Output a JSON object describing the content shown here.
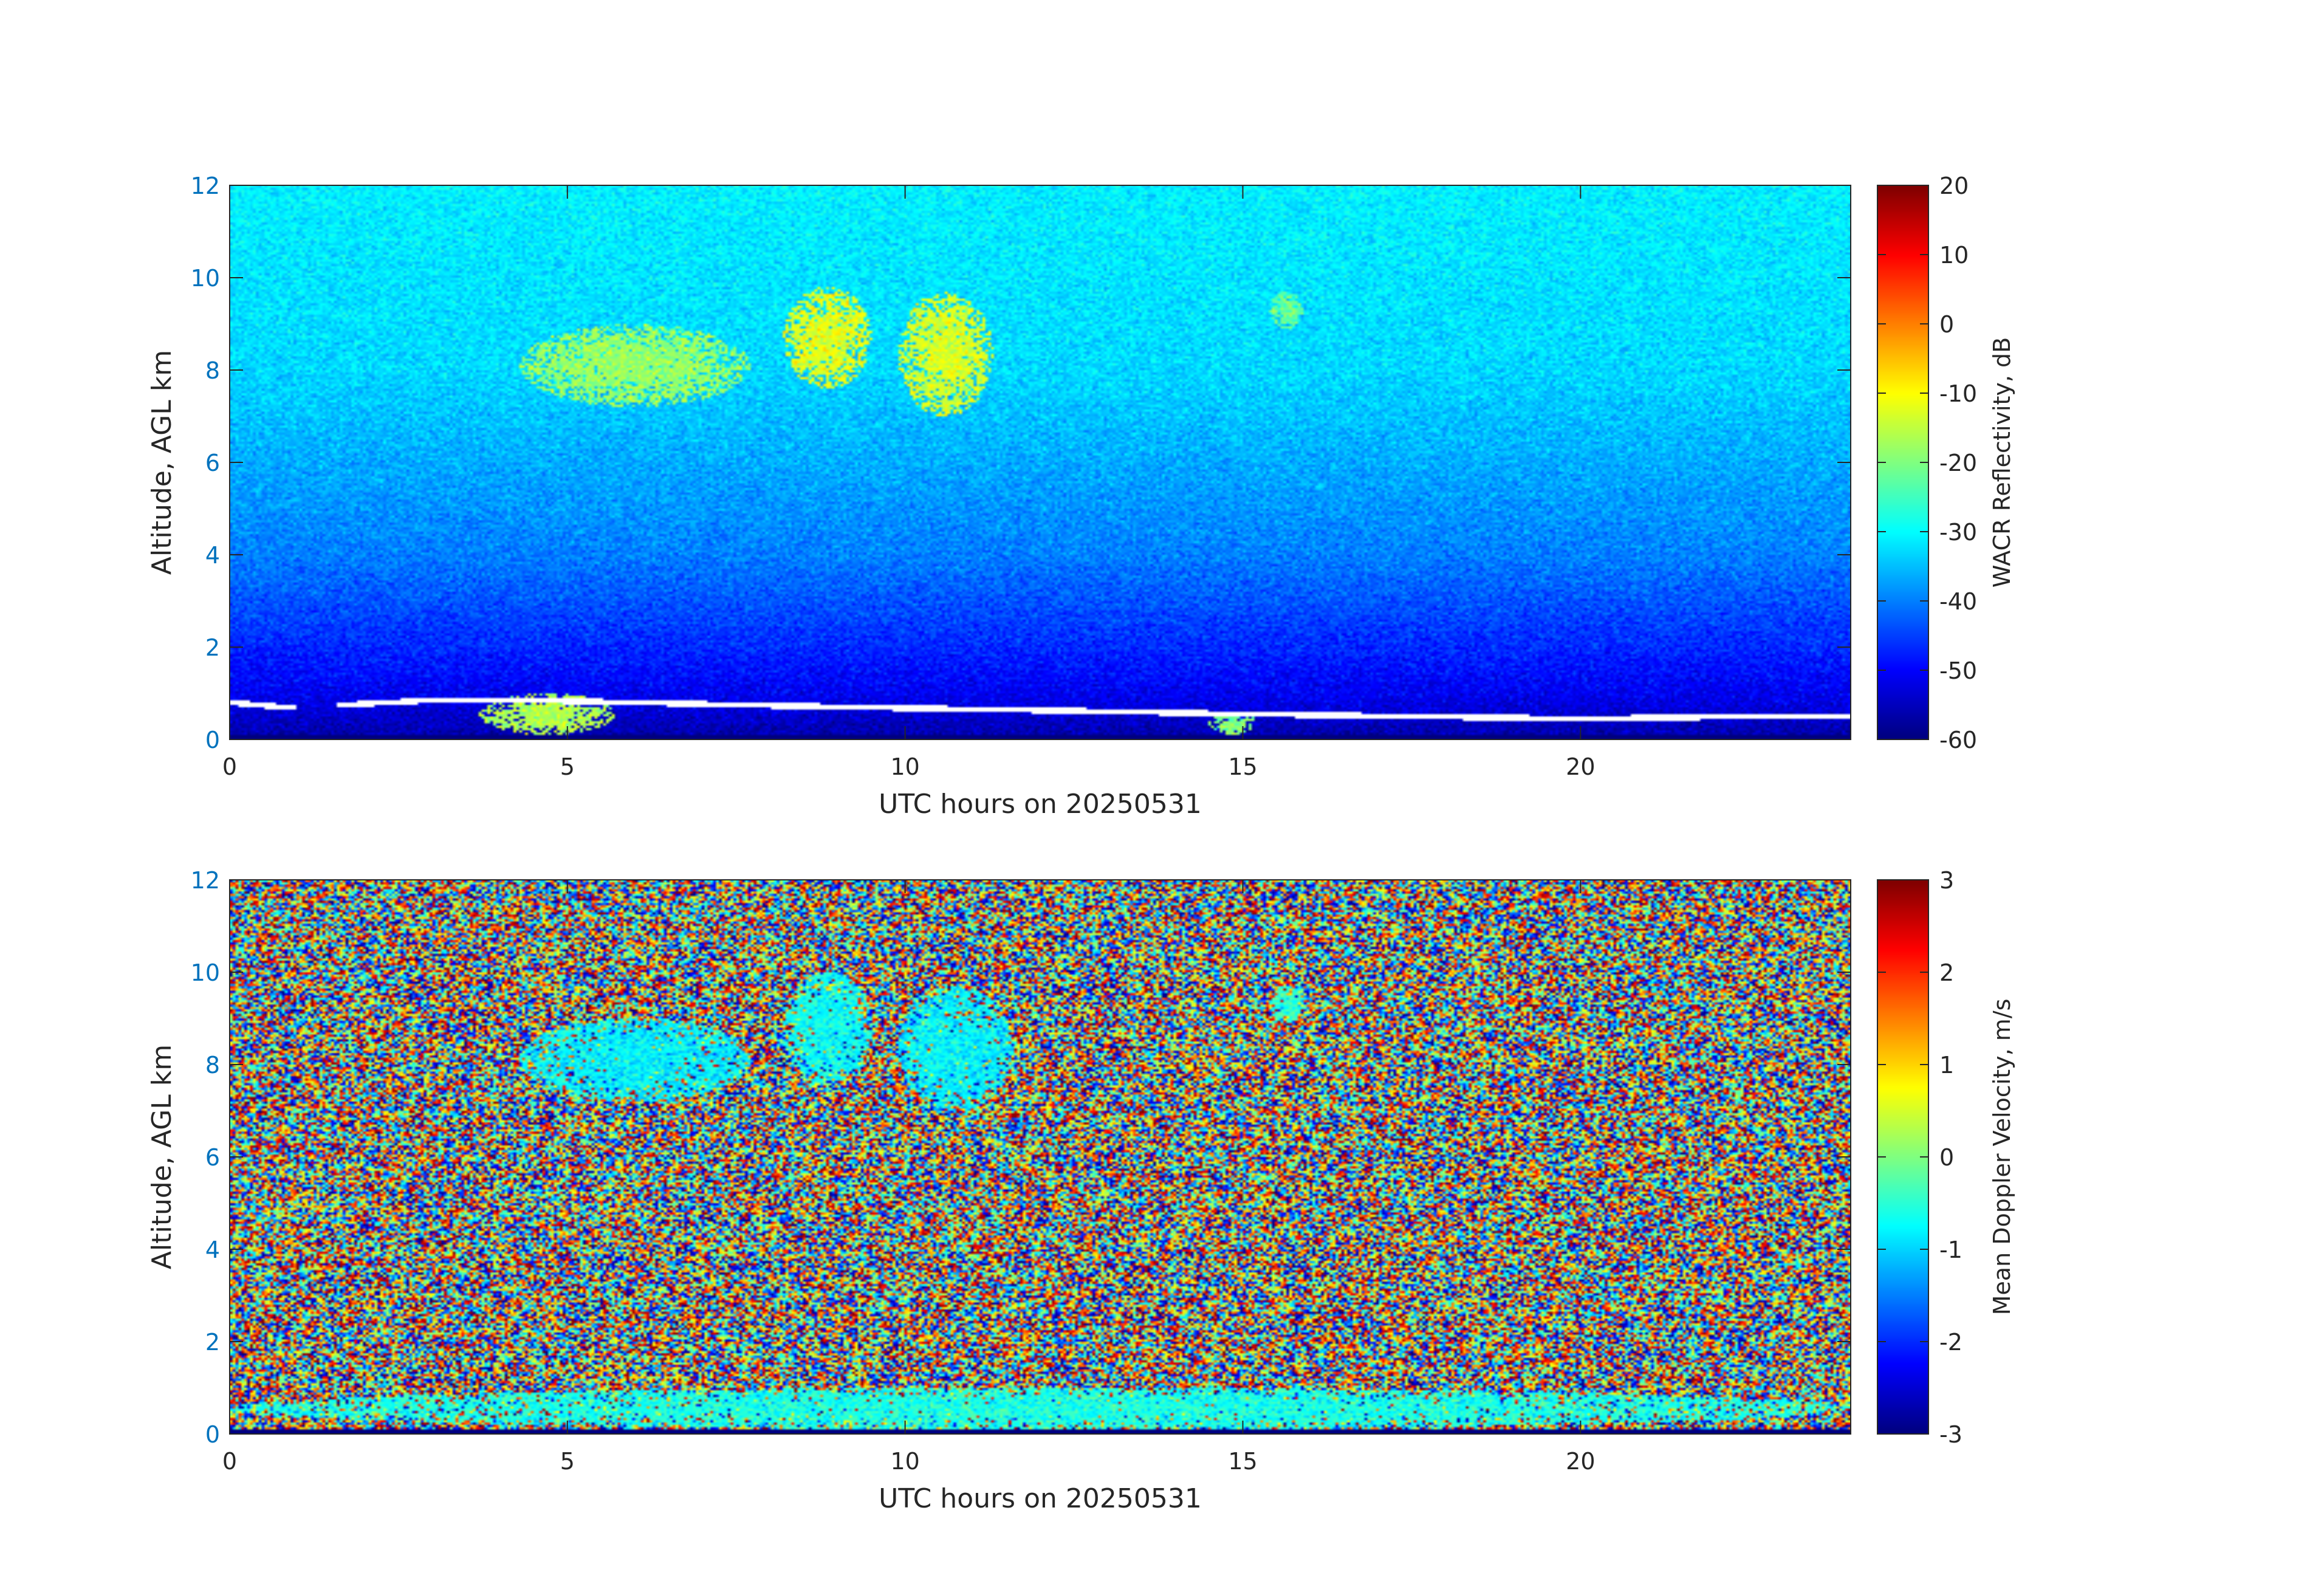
{
  "colors": {
    "axis_blue": "#0072bd",
    "tick_dark": "#262626",
    "colormap": "jet"
  },
  "chart_data": [
    {
      "type": "heatmap",
      "title": "",
      "xlabel": "UTC hours on 20250531",
      "ylabel": "Altitude, AGL km",
      "xlim": [
        0,
        24
      ],
      "ylim": [
        0,
        12
      ],
      "xticks": [
        "0",
        "5",
        "10",
        "15",
        "20"
      ],
      "yticks": [
        "0",
        "2",
        "4",
        "6",
        "8",
        "10",
        "12"
      ],
      "colorbar": {
        "label": "WACR Reflectivity, dB",
        "range": [
          -60,
          20
        ],
        "ticks": [
          "20",
          "10",
          "0",
          "-10",
          "-20",
          "-30",
          "-40",
          "-50",
          "-60"
        ]
      },
      "background_trend": {
        "altitude_km": [
          0,
          1,
          2,
          4,
          8,
          12
        ],
        "value_dB": [
          -57,
          -51,
          -47,
          -40,
          -33,
          -31
        ]
      },
      "features": [
        {
          "name": "cirrus",
          "x_range": [
            8.2,
            9.5
          ],
          "y_range": [
            7.6,
            9.8
          ],
          "value_dB": -12
        },
        {
          "name": "cirrus",
          "x_range": [
            9.9,
            11.3
          ],
          "y_range": [
            7.0,
            9.7
          ],
          "value_dB": -13
        },
        {
          "name": "cirrus fragments",
          "x_range": [
            4.3,
            7.7
          ],
          "y_range": [
            7.2,
            9.0
          ],
          "value_dB": -18
        },
        {
          "name": "cirrus",
          "x_range": [
            15.4,
            15.9
          ],
          "y_range": [
            8.9,
            9.7
          ],
          "value_dB": -22
        },
        {
          "name": "boundary-layer cloud",
          "x_range": [
            3.7,
            5.7
          ],
          "y_range": [
            0.1,
            1.0
          ],
          "value_dB": -16
        },
        {
          "name": "boundary-layer cloud",
          "x_range": [
            14.5,
            15.2
          ],
          "y_range": [
            0.1,
            0.6
          ],
          "value_dB": -20
        }
      ],
      "cloud_base_km": {
        "x": [
          0.0,
          0.8,
          1.7,
          3.0,
          4.5,
          6.0,
          7.5,
          10.0,
          12.5,
          15.0,
          17.5,
          20.0,
          22.5,
          24.0
        ],
        "y": [
          0.8,
          0.7,
          0.75,
          0.85,
          0.85,
          0.8,
          0.75,
          0.68,
          0.62,
          0.55,
          0.5,
          0.45,
          0.5,
          0.5
        ]
      }
    },
    {
      "type": "heatmap",
      "title": "",
      "xlabel": "UTC hours on 20250531",
      "ylabel": "Altitude, AGL km",
      "xlim": [
        0,
        24
      ],
      "ylim": [
        0,
        12
      ],
      "xticks": [
        "0",
        "5",
        "10",
        "15",
        "20"
      ],
      "yticks": [
        "0",
        "2",
        "4",
        "6",
        "8",
        "10",
        "12"
      ],
      "colorbar": {
        "label": "Mean Doppler Velocity, m/s",
        "range": [
          -3,
          3
        ],
        "ticks": [
          "3",
          "2",
          "1",
          "0",
          "-1",
          "-2",
          "-3"
        ]
      },
      "background": "random noise spanning -3 to 3 m/s",
      "features": [
        {
          "name": "cirrus",
          "x_range": [
            8.2,
            9.5
          ],
          "y_range": [
            7.6,
            10.0
          ],
          "value_ms": -0.7
        },
        {
          "name": "cirrus",
          "x_range": [
            9.9,
            11.6
          ],
          "y_range": [
            7.0,
            9.7
          ],
          "value_ms": -0.8
        },
        {
          "name": "cirrus fragments",
          "x_range": [
            4.3,
            7.7
          ],
          "y_range": [
            7.2,
            9.0
          ],
          "value_ms": -0.8
        },
        {
          "name": "cirrus",
          "x_range": [
            15.4,
            15.9
          ],
          "y_range": [
            8.9,
            9.7
          ],
          "value_ms": -0.5
        },
        {
          "name": "boundary-layer cloud",
          "x_range": [
            0.0,
            24.0
          ],
          "y_range": [
            0.1,
            1.0
          ],
          "value_ms": -0.6
        }
      ]
    }
  ]
}
